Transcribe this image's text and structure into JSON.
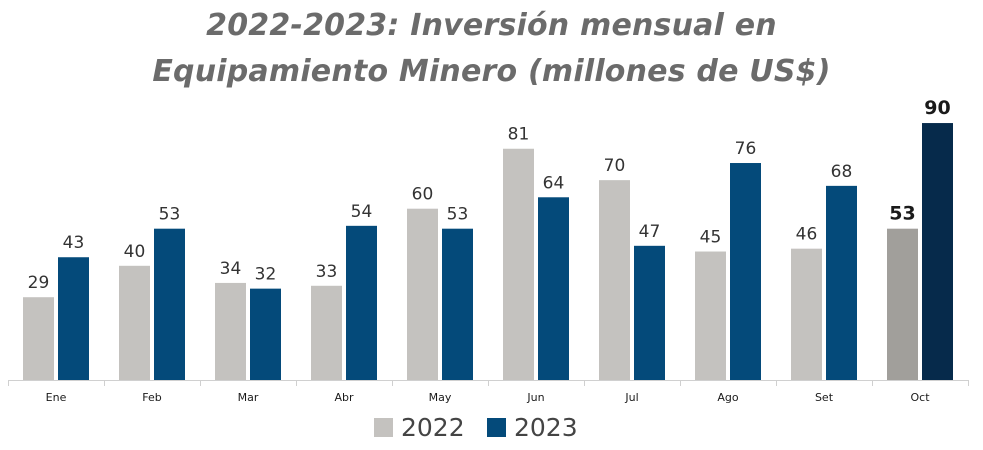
{
  "chart_data": {
    "type": "bar",
    "title_line1": "2022-2023: Inversión mensual en",
    "title_line2": "Equipamiento Minero (millones de US$)",
    "categories": [
      "Ene",
      "Feb",
      "Mar",
      "Abr",
      "May",
      "Jun",
      "Jul",
      "Ago",
      "Set",
      "Oct"
    ],
    "series": [
      {
        "name": "2022",
        "color": "#c4c2bf",
        "highlight_color": "#a19f9b",
        "values": [
          29,
          40,
          34,
          33,
          60,
          81,
          70,
          45,
          46,
          53
        ],
        "value_labels": [
          "29",
          "40",
          "34",
          "33",
          "60",
          "81",
          "70",
          "45",
          "46",
          "53"
        ]
      },
      {
        "name": "2023",
        "color": "#044a7a",
        "highlight_color": "#062a4b",
        "values": [
          43,
          53,
          32,
          54,
          53,
          64,
          47,
          76,
          68,
          90
        ],
        "value_labels": [
          "43",
          "53",
          "32",
          "54",
          "53",
          "64",
          "47",
          "76",
          "68",
          "90"
        ]
      }
    ],
    "highlight_category": "Oct",
    "ylim": [
      0,
      100
    ],
    "grid": false,
    "legend_position": "bottom-center",
    "axis_color": "#d0d0d0"
  }
}
